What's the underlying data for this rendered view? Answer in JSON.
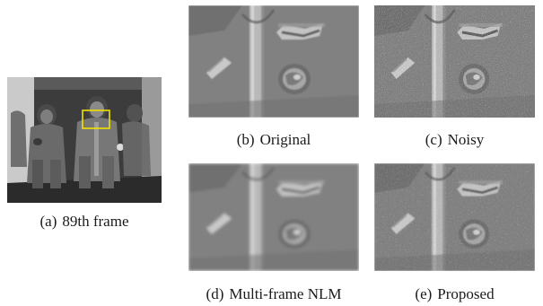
{
  "figure": {
    "panels": [
      {
        "id": "a",
        "tag": "(a)",
        "label": "89th frame",
        "content": "full video frame of astronauts walking in suits, yellow box marks crop region"
      },
      {
        "id": "b",
        "tag": "(b)",
        "label": "Original",
        "content": "clean crop of suit detail"
      },
      {
        "id": "c",
        "tag": "(c)",
        "label": "Noisy",
        "content": "noisy crop of suit detail"
      },
      {
        "id": "d",
        "tag": "(d)",
        "label": "Multi-frame NLM",
        "content": "denoised crop, smoothed"
      },
      {
        "id": "e",
        "tag": "(e)",
        "label": "Proposed",
        "content": "denoised crop, proposed method"
      }
    ],
    "highlight_box_color": "#f2e200"
  }
}
